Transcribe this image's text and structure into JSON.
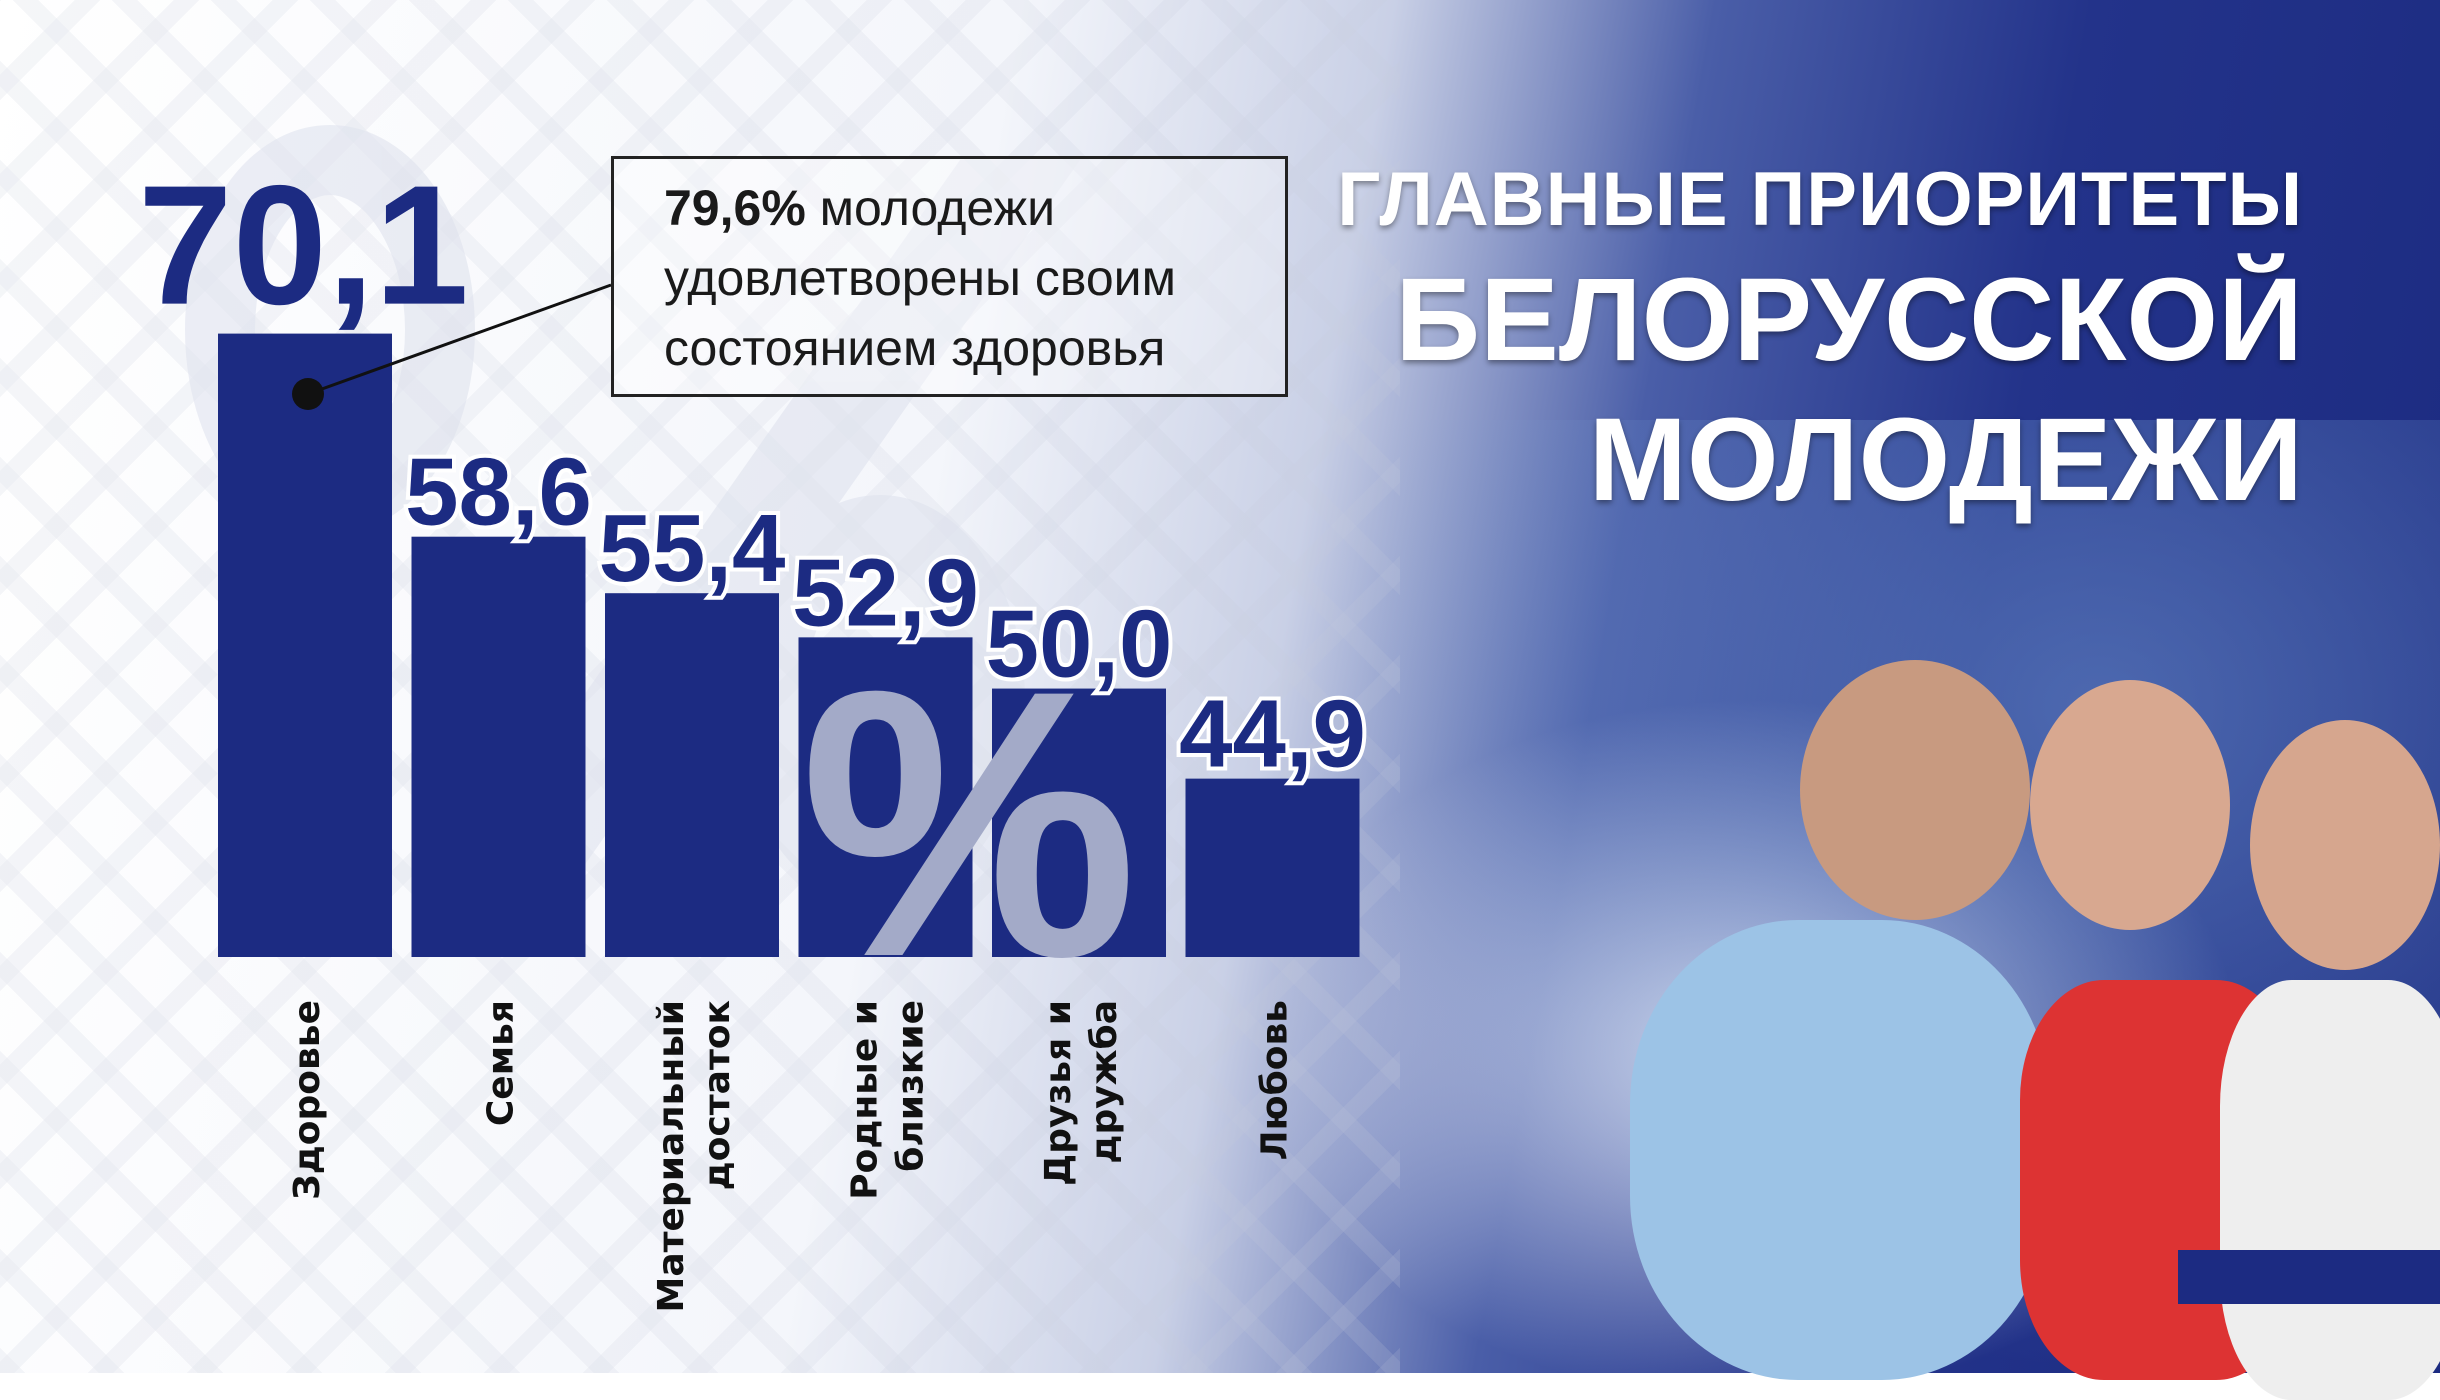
{
  "title": {
    "line1": "ГЛАВНЫЕ ПРИОРИТЕТЫ",
    "line2": "БЕЛОРУССКОЙ",
    "line3": "МОЛОДЕЖИ"
  },
  "callout": {
    "highlight": "79,6%",
    "text_rest": " молодежи удовлетворены своим состоянием здоровья"
  },
  "watermark": "%",
  "colors": {
    "bar": "#1c2b82",
    "title_background": "#1b2a80",
    "percent_glyph": "#a3aac8"
  },
  "chart_data": {
    "type": "bar",
    "title": "",
    "categories": [
      "Здоровье",
      "Семья",
      "Материальный достаток",
      "Родные и близкие",
      "Друзья и дружба",
      "Любовь"
    ],
    "category_lines": [
      [
        "Здоровье"
      ],
      [
        "Семья"
      ],
      [
        "Материальный",
        "достаток"
      ],
      [
        "Родные и",
        "близкие"
      ],
      [
        "Друзья и",
        "дружба"
      ],
      [
        "Любовь"
      ]
    ],
    "values": [
      70.1,
      58.6,
      55.4,
      52.9,
      50.0,
      44.9
    ],
    "value_labels": [
      "70,1",
      "58,6",
      "55,4",
      "52,9",
      "50,0",
      "44,9"
    ],
    "unit": "%",
    "xlabel": "",
    "ylabel": "",
    "grid": false
  }
}
